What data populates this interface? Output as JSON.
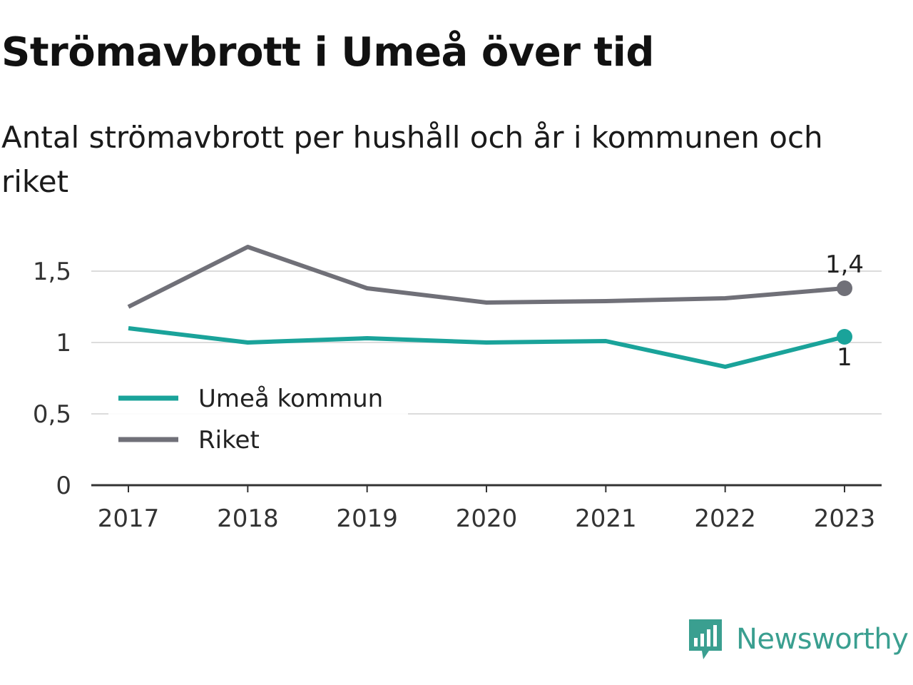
{
  "title": "Strömavbrott i Umeå över tid",
  "subtitle": "Antal strömavbrott per hushåll och år i kommunen och riket",
  "brand": {
    "name": "Newsworthy",
    "icon": "newsworthy-logo-icon",
    "color": "#3a9f90"
  },
  "chart_data": {
    "type": "line",
    "x": [
      "2017",
      "2018",
      "2019",
      "2020",
      "2021",
      "2022",
      "2023"
    ],
    "y_ticks": [
      {
        "value": 0,
        "label": "0"
      },
      {
        "value": 0.5,
        "label": "0,5"
      },
      {
        "value": 1,
        "label": "1"
      },
      {
        "value": 1.5,
        "label": "1,5"
      }
    ],
    "ylim": [
      0,
      1.75
    ],
    "grid": true,
    "legend_position": "left",
    "series": [
      {
        "name": "Umeå kommun",
        "color": "#1aa39a",
        "values": [
          1.1,
          1.0,
          1.03,
          1.0,
          1.01,
          0.83,
          1.04
        ],
        "end_label": "1"
      },
      {
        "name": "Riket",
        "color": "#707078",
        "values": [
          1.25,
          1.67,
          1.38,
          1.28,
          1.29,
          1.31,
          1.38
        ],
        "end_label": "1,4"
      }
    ]
  }
}
